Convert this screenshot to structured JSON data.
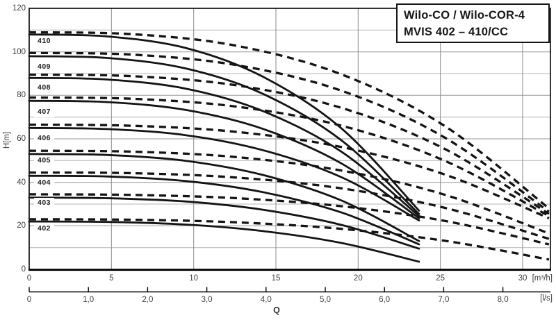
{
  "colors": {
    "curve": "#141414",
    "grid_major_h": "#979797",
    "grid_minor_h": "#b4b4b4",
    "grid_v": "#8a8a8a",
    "frame": "#000000",
    "text": "#3f3f3f"
  },
  "chart_data": {
    "type": "line",
    "title_lines": [
      "Wilo-CO / Wilo-COR-4",
      "MVIS 402 – 410/CC"
    ],
    "x_axis": {
      "label": "Q",
      "unit": "[m³/h]",
      "ticks": [
        0,
        5,
        10,
        15,
        20,
        25,
        30
      ],
      "range": [
        0,
        31.7
      ],
      "grid": true
    },
    "x_axis_secondary": {
      "unit": "[l/s]",
      "tick_labels": [
        "0",
        "1,0",
        "2,0",
        "3,0",
        "4,0",
        "5,0",
        "6,0",
        "7,0",
        "8,0"
      ],
      "tick_values_m3h": [
        0,
        3.6,
        7.2,
        10.8,
        14.4,
        18,
        21.6,
        25.2,
        28.8
      ]
    },
    "y_axis": {
      "label": "H[m]",
      "ticks": [
        0,
        20,
        40,
        60,
        80,
        100,
        120
      ],
      "minor_step": 10,
      "range": [
        0,
        120
      ],
      "grid": true
    },
    "line_styles": {
      "solid_width": 2.8,
      "dashed_width": 3.3,
      "dash_pattern": "10 7"
    },
    "series": [
      {
        "model": "402",
        "label_h": 18.6,
        "solid": {
          "points": [
            [
              0,
              22
            ],
            [
              4.7,
              21.8
            ],
            [
              9.5,
              20.6
            ],
            [
              14.2,
              17.6
            ],
            [
              19,
              12.1
            ],
            [
              23.7,
              3.5
            ]
          ]
        },
        "dashed": {
          "points": [
            [
              0,
              23
            ],
            [
              6.3,
              22.8
            ],
            [
              12.6,
              21.6
            ],
            [
              19,
              18.6
            ],
            [
              25.3,
              13.1
            ],
            [
              31.6,
              4.5
            ]
          ]
        }
      },
      {
        "model": "403",
        "label_h": 30.3,
        "solid": {
          "points": [
            [
              0,
              33
            ],
            [
              4.7,
              32.7
            ],
            [
              9.5,
              31.2
            ],
            [
              14.2,
              27.4
            ],
            [
              19,
              20.4
            ],
            [
              23.7,
              9.5
            ]
          ]
        },
        "dashed": {
          "points": [
            [
              0,
              34.5
            ],
            [
              6.3,
              34.2
            ],
            [
              12.6,
              32.7
            ],
            [
              19,
              29
            ],
            [
              25.3,
              22.2
            ],
            [
              31.6,
              11.5
            ]
          ]
        }
      },
      {
        "model": "404",
        "label_h": 39.7,
        "solid": {
          "points": [
            [
              0,
              43
            ],
            [
              4.7,
              42.7
            ],
            [
              9.5,
              40.6
            ],
            [
              14.2,
              35.5
            ],
            [
              19,
              26.1
            ],
            [
              23.7,
              11.5
            ]
          ]
        },
        "dashed": {
          "points": [
            [
              0,
              44.5
            ],
            [
              6.3,
              44.2
            ],
            [
              12.6,
              42.2
            ],
            [
              19,
              37.2
            ],
            [
              25.3,
              28.2
            ],
            [
              31.6,
              14
            ]
          ]
        }
      },
      {
        "model": "405",
        "label_h": 49.7,
        "solid": {
          "points": [
            [
              0,
              53
            ],
            [
              4.7,
              52.6
            ],
            [
              9.5,
              49.9
            ],
            [
              14.2,
              43.4
            ],
            [
              19,
              31.6
            ],
            [
              23.7,
              13
            ]
          ]
        },
        "dashed": {
          "points": [
            [
              0,
              54.5
            ],
            [
              6.3,
              54.1
            ],
            [
              12.6,
              51.6
            ],
            [
              19,
              45.4
            ],
            [
              25.3,
              34.2
            ],
            [
              31.6,
              16.5
            ]
          ]
        }
      },
      {
        "model": "406",
        "label_h": 60,
        "solid": {
          "points": [
            [
              0,
              65
            ],
            [
              4.7,
              64.5
            ],
            [
              9.5,
              61.7
            ],
            [
              14.2,
              54.8
            ],
            [
              19,
              42.3
            ],
            [
              23.7,
              22.5
            ]
          ]
        },
        "dashed": {
          "points": [
            [
              0,
              66.5
            ],
            [
              6.3,
              66
            ],
            [
              12.6,
              63.2
            ],
            [
              19,
              56.2
            ],
            [
              25.3,
              43.5
            ],
            [
              31.6,
              23.5
            ]
          ]
        }
      },
      {
        "model": "407",
        "label_h": 72,
        "solid": {
          "points": [
            [
              0,
              77.5
            ],
            [
              4.7,
              76.9
            ],
            [
              9.5,
              73.3
            ],
            [
              14.2,
              64.6
            ],
            [
              19,
              48.6
            ],
            [
              23.7,
              23.5
            ]
          ]
        },
        "dashed": {
          "points": [
            [
              0,
              79
            ],
            [
              6.3,
              78.4
            ],
            [
              12.6,
              74.8
            ],
            [
              19,
              66
            ],
            [
              25.3,
              49.8
            ],
            [
              31.6,
              24.5
            ]
          ]
        }
      },
      {
        "model": "408",
        "label_h": 83.2,
        "solid": {
          "points": [
            [
              0,
              88
            ],
            [
              4.7,
              87.3
            ],
            [
              9.5,
              83.1
            ],
            [
              14.2,
              72.8
            ],
            [
              19,
              54
            ],
            [
              23.7,
              24.5
            ]
          ]
        },
        "dashed": {
          "points": [
            [
              0,
              89.5
            ],
            [
              6.3,
              88.8
            ],
            [
              12.6,
              84.6
            ],
            [
              19,
              74.2
            ],
            [
              25.3,
              55.2
            ],
            [
              31.6,
              25.5
            ]
          ]
        }
      },
      {
        "model": "409",
        "label_h": 92.8,
        "solid": {
          "points": [
            [
              0,
              98
            ],
            [
              4.7,
              97.2
            ],
            [
              9.5,
              92.4
            ],
            [
              14.2,
              80.7
            ],
            [
              19,
              59.2
            ],
            [
              23.7,
              25.5
            ]
          ]
        },
        "dashed": {
          "points": [
            [
              0,
              99.5
            ],
            [
              6.3,
              98.7
            ],
            [
              12.6,
              93.9
            ],
            [
              19,
              82.1
            ],
            [
              25.3,
              60.4
            ],
            [
              31.6,
              26.5
            ]
          ]
        }
      },
      {
        "model": "410",
        "label_h": 104.7,
        "solid": {
          "points": [
            [
              0,
              108
            ],
            [
              4.7,
              107.1
            ],
            [
              9.5,
              101.8
            ],
            [
              14.2,
              88.6
            ],
            [
              19,
              64.7
            ],
            [
              23.7,
              27
            ]
          ]
        },
        "dashed": {
          "points": [
            [
              0,
              109
            ],
            [
              6.3,
              108.1
            ],
            [
              12.6,
              102.8
            ],
            [
              19,
              89.6
            ],
            [
              25.3,
              65.7
            ],
            [
              31.6,
              28
            ]
          ]
        }
      }
    ]
  }
}
